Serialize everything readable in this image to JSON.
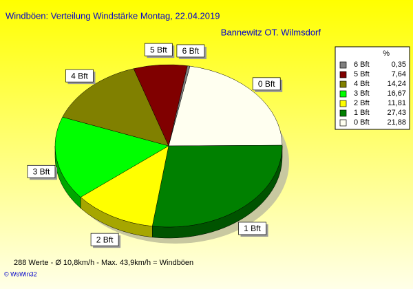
{
  "chart_data": {
    "type": "pie",
    "title": "Windböen: Verteilung Windstärke  Montag, 22.04.2019",
    "subtitle": "Bannewitz OT. Wilmsdorf",
    "categories": [
      "6 Bft",
      "5 Bft",
      "4 Bft",
      "3 Bft",
      "2 Bft",
      "1 Bft",
      "0 Bft"
    ],
    "values": [
      0.35,
      7.64,
      14.24,
      16.67,
      11.81,
      27.43,
      21.88
    ],
    "value_labels": [
      "0,35",
      "7,64",
      "14,24",
      "16,67",
      "11,81",
      "27,43",
      "21,88"
    ],
    "colors": [
      "#808080",
      "#800000",
      "#808000",
      "#00ff00",
      "#ffff00",
      "#008000",
      "#fffff0"
    ],
    "legend_header": "%",
    "legend": "right",
    "footer": "288 Werte   -   Ø 10,8km/h  -  Max. 43,9km/h = Windböen",
    "credit": "© WsWin32"
  }
}
